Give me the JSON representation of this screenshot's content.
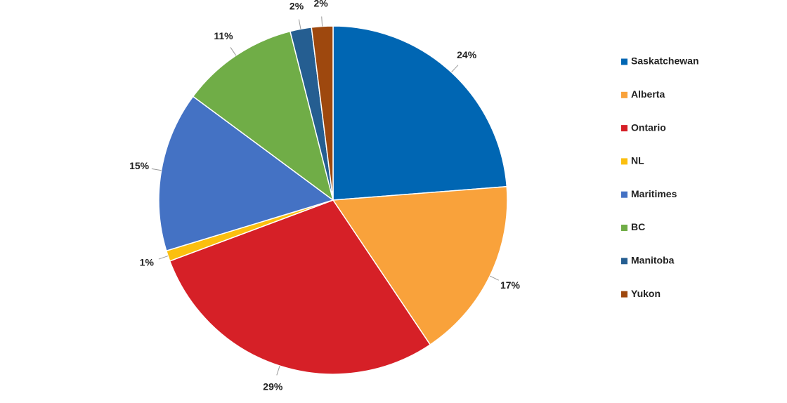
{
  "chart_data": {
    "type": "pie",
    "categories": [
      "Saskatchewan",
      "Alberta",
      "Ontario",
      "NL",
      "Maritimes",
      "BC",
      "Manitoba",
      "Yukon"
    ],
    "values": [
      24,
      17,
      29,
      1,
      15,
      11,
      2,
      2
    ],
    "value_labels": [
      "24%",
      "17%",
      "29%",
      "1%",
      "15%",
      "11%",
      "2%",
      "2%"
    ],
    "colors": [
      "#0066b3",
      "#f9a23b",
      "#d62027",
      "#fbbf0f",
      "#4472c4",
      "#70ad47",
      "#255e91",
      "#9e480e"
    ],
    "legend": "right"
  }
}
